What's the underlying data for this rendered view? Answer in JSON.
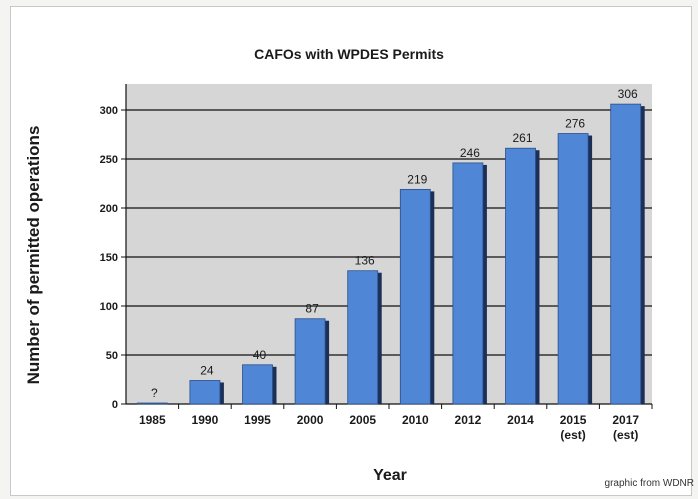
{
  "chart_data": {
    "type": "bar",
    "title": "CAFOs with WPDES Permits",
    "xlabel": "Year",
    "ylabel": "Number of permitted operations",
    "categories": [
      "1985",
      "1990",
      "1995",
      "2000",
      "2005",
      "2010",
      "2012",
      "2014",
      "2015\n(est)",
      "2017\n(est)"
    ],
    "values": [
      1,
      24,
      40,
      87,
      136,
      219,
      246,
      261,
      276,
      306
    ],
    "value_labels": [
      "?",
      "24",
      "40",
      "87",
      "136",
      "219",
      "246",
      "261",
      "276",
      "306"
    ],
    "ylim": [
      0,
      300
    ],
    "yticks": [
      0,
      50,
      100,
      150,
      200,
      250,
      300
    ],
    "grid": true,
    "colors": {
      "bar": "#4f86d6",
      "bar_shadow": "#1c2f57",
      "plot_bg": "#d6d6d6"
    }
  },
  "credit": "graphic from WDNR"
}
